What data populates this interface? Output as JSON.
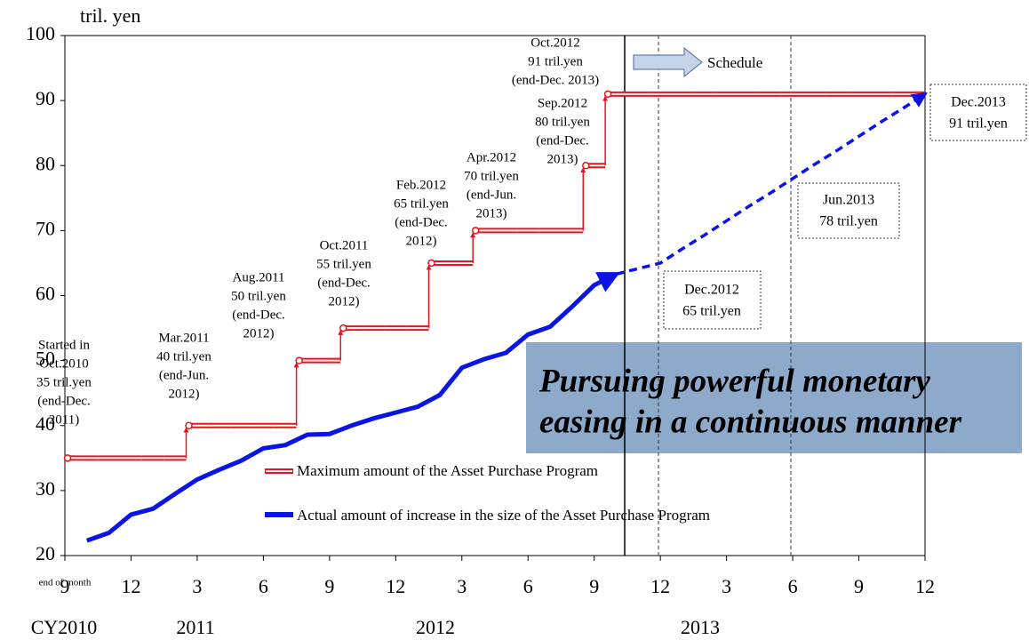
{
  "chart_data": {
    "type": "line",
    "y_label": "tril. yen",
    "x_note": "end of month",
    "years": [
      "CY2010",
      "2011",
      "2012",
      "2013"
    ],
    "categories": [
      "9",
      null,
      null,
      "12",
      null,
      null,
      "3",
      null,
      null,
      "6",
      null,
      null,
      "9",
      null,
      null,
      "12",
      null,
      null,
      "3",
      null,
      null,
      "6",
      null,
      null,
      "9",
      null,
      null,
      "12",
      null,
      null,
      "3",
      null,
      null,
      "6",
      null,
      null,
      "9",
      null,
      null,
      "12"
    ],
    "ylim": [
      20,
      100
    ],
    "yticks": [
      20,
      30,
      40,
      50,
      60,
      70,
      80,
      90,
      100
    ],
    "grid": false,
    "series": [
      {
        "name": "Maximum amount of the Asset Purchase Program",
        "color": "#e8141b",
        "style": "step",
        "values": [
          35,
          35,
          35,
          35,
          35,
          35,
          40,
          40,
          40,
          40,
          40,
          50,
          50,
          55,
          55,
          55,
          55,
          65,
          65,
          70,
          70,
          70,
          70,
          70,
          80,
          91,
          91,
          91,
          91,
          91,
          91,
          91,
          91,
          91,
          91,
          91,
          91,
          91,
          91,
          91
        ]
      },
      {
        "name": "Actual amount of increase in the size of the Asset Purchase Program",
        "color": "#0a14e6",
        "style": "solid",
        "values": [
          null,
          22.3,
          23.5,
          26.3,
          27.2,
          29.5,
          31.7,
          33.2,
          34.6,
          36.5,
          37.0,
          38.6,
          38.7,
          40.0,
          41.1,
          42.0,
          42.9,
          44.7,
          48.9,
          50.2,
          51.2,
          54.0,
          55.2,
          58.3,
          61.6,
          63.3,
          null,
          null,
          null,
          null,
          null,
          null,
          null,
          null,
          null,
          null,
          null,
          null,
          null,
          null
        ]
      }
    ],
    "scheduled": {
      "color": "#0a14e6",
      "style": "dashed",
      "values": [
        null,
        null,
        null,
        null,
        null,
        null,
        null,
        null,
        null,
        null,
        null,
        null,
        null,
        null,
        null,
        null,
        null,
        null,
        null,
        null,
        null,
        null,
        null,
        null,
        null,
        63.3,
        64.15,
        65,
        67.2,
        69.3,
        71.5,
        73.7,
        75.8,
        78,
        80.2,
        82.3,
        84.5,
        86.7,
        88.8,
        91
      ]
    },
    "annotations": [
      {
        "lines": [
          "Started in",
          "Oct.2010",
          "35 tril.yen",
          "(end-Dec.",
          "2011)"
        ]
      },
      {
        "lines": [
          "Mar.2011",
          "40 tril.yen",
          "(end-Jun.",
          "2012)"
        ]
      },
      {
        "lines": [
          "Aug.2011",
          "50 tril.yen",
          "(end-Dec.",
          "2012)"
        ]
      },
      {
        "lines": [
          "Oct.2011",
          "55 tril.yen",
          "(end-Dec.",
          "2012)"
        ]
      },
      {
        "lines": [
          "Feb.2012",
          "65 tril.yen",
          "(end-Dec.",
          "2012)"
        ]
      },
      {
        "lines": [
          "Apr.2012",
          "70 tril.yen",
          "(end-Jun.",
          "2013)"
        ]
      },
      {
        "lines": [
          "Sep.2012",
          "80 tril.yen",
          "(end-Dec.",
          "2013)"
        ]
      },
      {
        "lines": [
          "Oct.2012",
          "91 tril.yen",
          "(end-Dec. 2013)"
        ]
      }
    ],
    "boxed_labels": [
      {
        "lines": [
          "Dec.2012",
          "65 tril.yen"
        ]
      },
      {
        "lines": [
          "Jun.2013",
          "78 tril.yen"
        ]
      },
      {
        "lines": [
          "Dec.2013",
          "91 tril.yen"
        ]
      }
    ],
    "callout": "Schedule",
    "headline": [
      "Pursuing powerful monetary",
      "easing in a continuous manner"
    ]
  }
}
